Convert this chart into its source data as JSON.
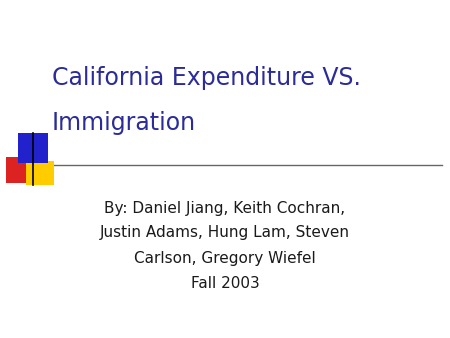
{
  "title_line1": "California Expenditure VS.",
  "title_line2": "Immigration",
  "title_color": "#2B2B99",
  "body_line1": "By: Daniel Jiang, Keith Cochran,",
  "body_line2": "Justin Adams, Hung Lam, Steven",
  "body_line3": "Carlson, Gregory Wiefel",
  "body_line4": "Fall 2003",
  "body_color": "#1a1a1a",
  "background_color": "#FFFFFF",
  "separator_color": "#666666",
  "square_blue": "#2222CC",
  "square_red": "#DD2222",
  "square_yellow": "#FFCC00",
  "title_fontsize": 17,
  "body_fontsize": 11
}
